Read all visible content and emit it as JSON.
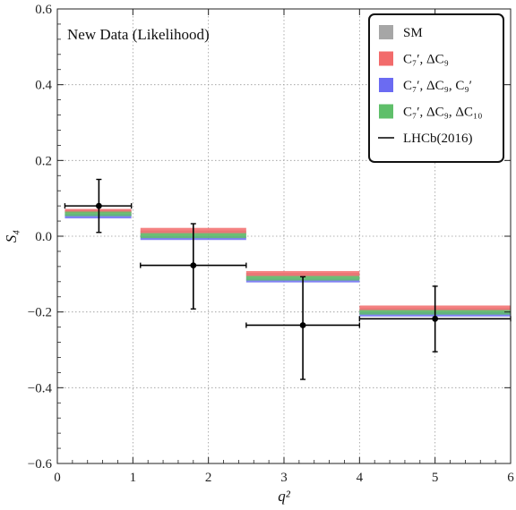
{
  "chart_data": {
    "type": "scatter",
    "title": "",
    "annotation": "New Data (Likelihood)",
    "xlabel": "q²",
    "ylabel": "S₄",
    "xlim": [
      0,
      6
    ],
    "ylim": [
      -0.6,
      0.6
    ],
    "x_ticks": [
      0,
      1,
      2,
      3,
      4,
      5,
      6
    ],
    "x_tick_labels": [
      "0",
      "1",
      "2",
      "3",
      "4",
      "5",
      "6"
    ],
    "y_ticks": [
      -0.6,
      -0.4,
      -0.2,
      0.0,
      0.2,
      0.4,
      0.6
    ],
    "y_tick_labels": [
      "−0.6",
      "−0.4",
      "−0.2",
      "0.0",
      "0.2",
      "0.4",
      "0.6"
    ],
    "grid": true,
    "legend_position": "top-right",
    "bins": [
      [
        0.1,
        0.98
      ],
      [
        1.1,
        2.5
      ],
      [
        2.5,
        4.0
      ],
      [
        4.0,
        6.0
      ]
    ],
    "bands": [
      {
        "name": "SM",
        "color": "#a6a6a6",
        "ranges": [
          [
            0.055,
            0.07
          ],
          [
            0.0,
            0.015
          ],
          [
            -0.112,
            -0.097
          ],
          [
            -0.205,
            -0.19
          ]
        ]
      },
      {
        "name": "C₇′, ΔC₉",
        "color": "#f26b6b",
        "ranges": [
          [
            0.062,
            0.072
          ],
          [
            0.008,
            0.022
          ],
          [
            -0.105,
            -0.092
          ],
          [
            -0.195,
            -0.183
          ]
        ]
      },
      {
        "name": "C₇′, ΔC₉, C₉′",
        "color": "#6b6bf2",
        "ranges": [
          [
            0.047,
            0.058
          ],
          [
            -0.01,
            0.0
          ],
          [
            -0.122,
            -0.112
          ],
          [
            -0.212,
            -0.2
          ]
        ]
      },
      {
        "name": "C₇′, ΔC₉, ΔC₁₀",
        "color": "#5fbf6a",
        "ranges": [
          [
            0.053,
            0.065
          ],
          [
            -0.005,
            0.008
          ],
          [
            -0.117,
            -0.105
          ],
          [
            -0.207,
            -0.195
          ]
        ]
      }
    ],
    "points": {
      "name": "LHCb(2016)",
      "color": "#000000",
      "x": [
        0.55,
        1.8,
        3.25,
        5.0
      ],
      "y": [
        0.08,
        -0.077,
        -0.235,
        -0.218
      ],
      "xerr": [
        [
          0.1,
          0.98
        ],
        [
          1.1,
          2.5
        ],
        [
          2.5,
          4.0
        ],
        [
          4.0,
          6.0
        ]
      ],
      "yerr": [
        [
          0.01,
          0.15
        ],
        [
          -0.192,
          0.033
        ],
        [
          -0.378,
          -0.107
        ],
        [
          -0.305,
          -0.132
        ]
      ]
    },
    "legend": [
      {
        "label": "SM",
        "color": "#a6a6a6",
        "kind": "swatch"
      },
      {
        "label": "C₇′, ΔC₉",
        "color": "#f26b6b",
        "kind": "swatch"
      },
      {
        "label": "C₇′, ΔC₉, C₉′",
        "color": "#6b6bf2",
        "kind": "swatch"
      },
      {
        "label": "C₇′, ΔC₉, ΔC₁₀",
        "color": "#5fbf6a",
        "kind": "swatch"
      },
      {
        "label": "LHCb(2016)",
        "color": "#000000",
        "kind": "line"
      }
    ]
  }
}
